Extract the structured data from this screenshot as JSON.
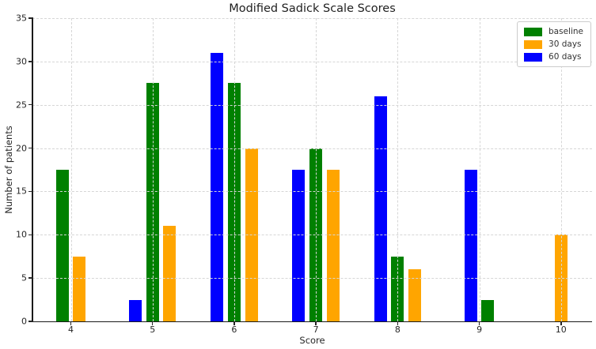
{
  "chart_data": {
    "type": "bar",
    "title": "Modified Sadick Scale Scores",
    "xlabel": "Score",
    "ylabel": "Number of patients",
    "categories": [
      4,
      5,
      6,
      7,
      8,
      9,
      10
    ],
    "series": [
      {
        "name": "baseline",
        "color": "#008000",
        "values": [
          17.5,
          27.5,
          27.5,
          20,
          7.5,
          2.5,
          0
        ]
      },
      {
        "name": "30 days",
        "color": "#FFA500",
        "values": [
          7.5,
          11,
          20,
          17.5,
          6,
          0,
          10
        ]
      },
      {
        "name": "60 days",
        "color": "#0000FF",
        "values": [
          0,
          2.5,
          31,
          17.5,
          26,
          17.5,
          0
        ]
      }
    ],
    "x_ticks": [
      4,
      5,
      6,
      7,
      8,
      9,
      10
    ],
    "y_ticks": [
      0,
      5,
      10,
      15,
      20,
      25,
      30,
      35
    ],
    "xlim": [
      3.53,
      10.38
    ],
    "ylim": [
      0,
      35
    ],
    "grid": true,
    "grid_style": "dashed",
    "grid_above_bars": true,
    "legend_position": "upper right",
    "group_draw_order": [
      "60 days",
      "baseline",
      "30 days"
    ],
    "zero_bars_omitted": true
  }
}
